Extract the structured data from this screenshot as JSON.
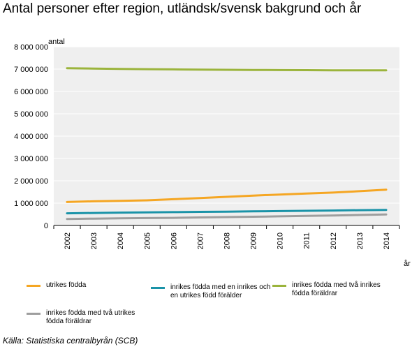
{
  "title": "Antal personer efter region, utländsk/svensk bakgrund och år",
  "source": "Källa: Statistiska centralbyrån (SCB)",
  "chart_data": {
    "type": "line",
    "title": "Antal personer efter region, utländsk/svensk bakgrund och år",
    "xlabel": "år",
    "ylabel": "antal",
    "categories": [
      "2002",
      "2003",
      "2004",
      "2005",
      "2006",
      "2007",
      "2008",
      "2009",
      "2010",
      "2011",
      "2012",
      "2013",
      "2014"
    ],
    "ylim": [
      0,
      8000000
    ],
    "yticks": [
      0,
      1000000,
      2000000,
      3000000,
      4000000,
      5000000,
      6000000,
      7000000,
      8000000
    ],
    "ytick_labels": [
      "0",
      "1 000 000",
      "2 000 000",
      "3 000 000",
      "4 000 000",
      "5 000 000",
      "6 000 000",
      "7 000 000",
      "8 000 000"
    ],
    "grid": true,
    "legend_position": "bottom",
    "series": [
      {
        "name": "utrikes födda",
        "color": "#f5a623",
        "values": [
          1050000,
          1080000,
          1100000,
          1125000,
          1175000,
          1228000,
          1282000,
          1338000,
          1384000,
          1427000,
          1473000,
          1533000,
          1603000
        ]
      },
      {
        "name": "inrikes födda med en inrikes och en utrikes född förälder",
        "color": "#1a93a8",
        "values": [
          545000,
          560000,
          575000,
          587000,
          598000,
          610000,
          620000,
          630000,
          643000,
          655000,
          668000,
          683000,
          697000
        ]
      },
      {
        "name": "inrikes födda med två inrikes födda föräldrar",
        "color": "#9bb43c",
        "values": [
          7040000,
          7025000,
          7010000,
          6998000,
          6988000,
          6978000,
          6968000,
          6962000,
          6957000,
          6952000,
          6948000,
          6946000,
          6944000
        ]
      },
      {
        "name": "inrikes födda med två utrikes födda föräldrar",
        "color": "#9e9e9e",
        "values": [
          290000,
          305000,
          318000,
          330000,
          342000,
          358000,
          375000,
          392000,
          410000,
          428000,
          448000,
          470000,
          495000
        ]
      }
    ]
  }
}
